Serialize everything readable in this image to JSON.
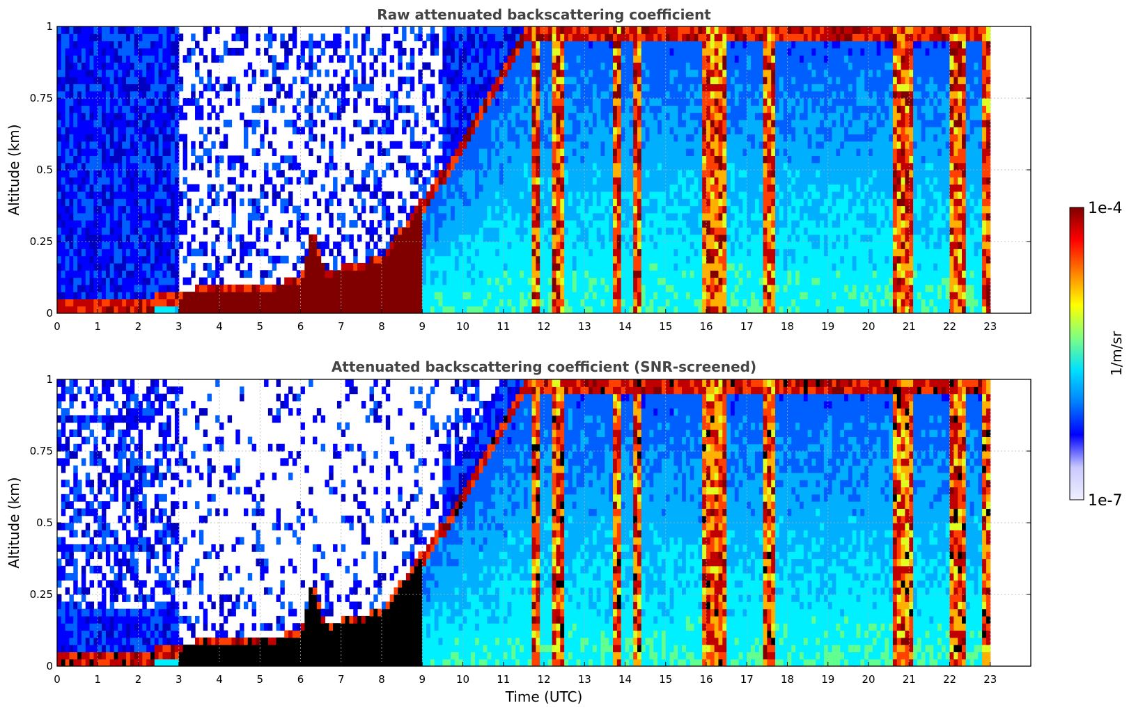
{
  "chart_data": [
    {
      "type": "heatmap",
      "title": "Raw attenuated backscattering coefficient",
      "xlabel": "",
      "ylabel": "Altitude (km)",
      "xlim": [
        0,
        24
      ],
      "ylim": [
        0,
        1
      ],
      "x_ticks": [
        0,
        1,
        2,
        3,
        4,
        5,
        6,
        7,
        8,
        9,
        10,
        11,
        12,
        13,
        14,
        15,
        16,
        17,
        18,
        19,
        20,
        21,
        22,
        23
      ],
      "y_ticks": [
        0,
        0.25,
        0.5,
        0.75,
        1
      ],
      "y_tick_labels": [
        "0",
        "0.25",
        "0.5",
        "0.75",
        "1"
      ],
      "grid": true,
      "data_end_time": 23,
      "colormap": "jet (log scale)",
      "value_range": [
        1e-07,
        0.0001
      ],
      "unit": "1/m/sr",
      "boundary_layer_top_km": [
        [
          0,
          0.05
        ],
        [
          1.6,
          0.05
        ],
        [
          2,
          0.05
        ],
        [
          3,
          0.08
        ],
        [
          4,
          0.1
        ],
        [
          5,
          0.1
        ],
        [
          6,
          0.12
        ],
        [
          6.3,
          0.3
        ],
        [
          6.6,
          0.15
        ],
        [
          7.5,
          0.18
        ],
        [
          8,
          0.2
        ],
        [
          8.5,
          0.3
        ],
        [
          9,
          0.4
        ],
        [
          9.5,
          0.5
        ],
        [
          10,
          0.6
        ],
        [
          10.5,
          0.75
        ],
        [
          11,
          0.85
        ],
        [
          11.5,
          1.0
        ]
      ],
      "cloud_columns_utc": [
        [
          11.7,
          11.9
        ],
        [
          12.2,
          12.5
        ],
        [
          13.7,
          13.9
        ],
        [
          14.2,
          14.4
        ],
        [
          15.9,
          16.5
        ],
        [
          17.4,
          17.7
        ],
        [
          20.6,
          21.1
        ],
        [
          22.0,
          22.4
        ],
        [
          22.8,
          23.0
        ]
      ]
    },
    {
      "type": "heatmap",
      "title": "Attenuated backscattering coefficient (SNR-screened)",
      "xlabel": "Time (UTC)",
      "ylabel": "Altitude (km)",
      "xlim": [
        0,
        24
      ],
      "ylim": [
        0,
        1
      ],
      "x_ticks": [
        0,
        1,
        2,
        3,
        4,
        5,
        6,
        7,
        8,
        9,
        10,
        11,
        12,
        13,
        14,
        15,
        16,
        17,
        18,
        19,
        20,
        21,
        22,
        23
      ],
      "y_ticks": [
        0,
        0.25,
        0.5,
        0.75,
        1
      ],
      "y_tick_labels": [
        "0",
        "0.25",
        "0.5",
        "0.75",
        "1"
      ],
      "grid": true,
      "data_end_time": 23,
      "colormap": "jet (log scale)",
      "value_range": [
        1e-07,
        0.0001
      ],
      "unit": "1/m/sr"
    }
  ],
  "colorbar": {
    "max_label": "1e-4",
    "min_label": "1e-7",
    "label": "1/m/sr",
    "colors": [
      "#f0f0ff",
      "#c8c8ff",
      "#0000ff",
      "#0080ff",
      "#00e0ff",
      "#80ff80",
      "#ffff00",
      "#ff8000",
      "#ff0000",
      "#800000"
    ]
  }
}
